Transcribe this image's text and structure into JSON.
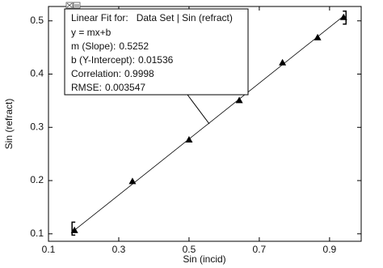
{
  "chart_data": {
    "type": "scatter",
    "x_label": "Sin (incid)",
    "y_label": "Sin (refract)",
    "x": [
      0.174,
      0.339,
      0.5,
      0.643,
      0.766,
      0.866,
      0.94
    ],
    "series": [
      {
        "name": "Data Set | Sin (refract)",
        "color": "#000000",
        "values": [
          0.106,
          0.198,
          0.276,
          0.35,
          0.421,
          0.468,
          0.506
        ]
      }
    ],
    "xlim": [
      0.1,
      0.99
    ],
    "ylim": [
      0.086,
      0.527
    ],
    "xticks": [
      0.1,
      0.3,
      0.5,
      0.7,
      0.9
    ],
    "yticks": [
      0.1,
      0.2,
      0.3,
      0.4,
      0.5
    ],
    "fit": {
      "title": "Linear Fit for:",
      "dataset": "Data Set | Sin (refract)",
      "equation": "y = mx+b",
      "slope": {
        "label": "m (Slope):",
        "value": 0.5252
      },
      "intercept": {
        "label": "b (Y-Intercept):",
        "value": 0.01536
      },
      "correlation": {
        "label": "Correlation:",
        "value": 0.9998
      },
      "rmse": {
        "label": "RMSE:",
        "value": 0.003547
      }
    }
  }
}
